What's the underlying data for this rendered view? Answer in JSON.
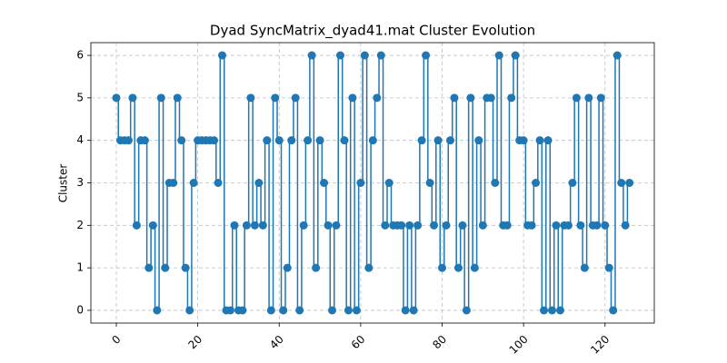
{
  "chart_data": {
    "type": "step",
    "title": "Dyad SyncMatrix_dyad41.mat Cluster Evolution",
    "ylabel": "Cluster",
    "x": [
      0,
      1,
      2,
      3,
      4,
      5,
      6,
      7,
      8,
      9,
      10,
      11,
      12,
      13,
      14,
      15,
      16,
      17,
      18,
      19,
      20,
      21,
      22,
      23,
      24,
      25,
      26,
      27,
      28,
      29,
      30,
      31,
      32,
      33,
      34,
      35,
      36,
      37,
      38,
      39,
      40,
      41,
      42,
      43,
      44,
      45,
      46,
      47,
      48,
      49,
      50,
      51,
      52,
      53,
      54,
      55,
      56,
      57,
      58,
      59,
      60,
      61,
      62,
      63,
      64,
      65,
      66,
      67,
      68,
      69,
      70,
      71,
      72,
      73,
      74,
      75,
      76,
      77,
      78,
      79,
      80,
      81,
      82,
      83,
      84,
      85,
      86,
      87,
      88,
      89,
      90,
      91,
      92,
      93,
      94,
      95,
      96,
      97,
      98,
      99,
      100,
      101,
      102,
      103,
      104,
      105,
      106,
      107,
      108,
      109,
      110,
      111,
      112,
      113,
      114,
      115,
      116,
      117,
      118,
      119,
      120,
      121,
      122,
      123,
      124,
      125,
      126
    ],
    "series": [
      {
        "color": "#1f77b4",
        "values": [
          5,
          4,
          4,
          4,
          5,
          2,
          4,
          4,
          1,
          2,
          0,
          5,
          1,
          3,
          3,
          5,
          4,
          1,
          0,
          3,
          4,
          4,
          4,
          4,
          4,
          3,
          6,
          0,
          0,
          2,
          0,
          0,
          2,
          5,
          2,
          3,
          2,
          4,
          0,
          5,
          4,
          0,
          1,
          4,
          5,
          0,
          2,
          4,
          6,
          1,
          4,
          3,
          2,
          0,
          2,
          6,
          4,
          0,
          5,
          0,
          3,
          6,
          1,
          4,
          5,
          6,
          2,
          3,
          2,
          2,
          2,
          0,
          2,
          0,
          2,
          4,
          6,
          3,
          2,
          4,
          1,
          2,
          4,
          5,
          1,
          2,
          0,
          5,
          1,
          4,
          2,
          5,
          5,
          3,
          6,
          2,
          2,
          5,
          6,
          4,
          4,
          2,
          2,
          3,
          4,
          0,
          4,
          0,
          2,
          0,
          2,
          2,
          3,
          5,
          2,
          1,
          5,
          2,
          2,
          5,
          2,
          1,
          0,
          6,
          3,
          2,
          3
        ]
      }
    ],
    "xlim": [
      -6.25,
      132.1
    ],
    "ylim": [
      -0.3,
      6.3
    ],
    "xticks": [
      0,
      20,
      40,
      60,
      80,
      100,
      120
    ],
    "yticks": [
      0,
      1,
      2,
      3,
      4,
      5,
      6
    ],
    "grid": true
  }
}
